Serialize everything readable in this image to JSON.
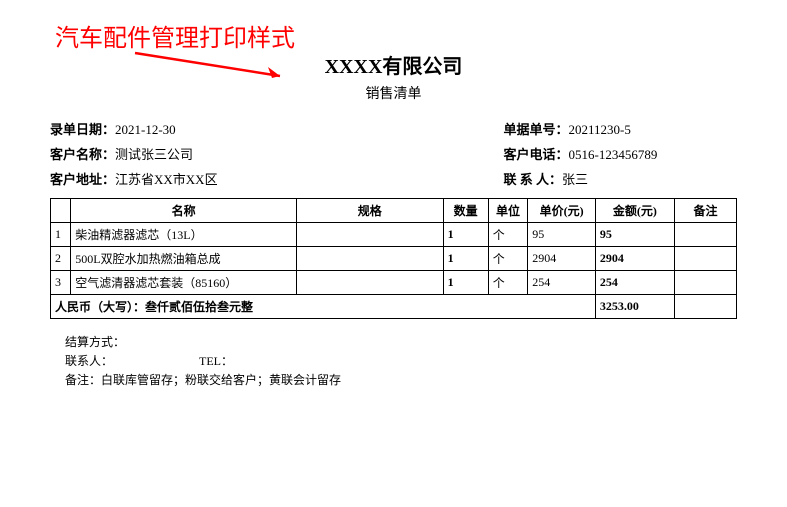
{
  "annotation": {
    "text": "汽车配件管理打印样式",
    "color": "#ff0000",
    "arrow_color": "#ff0000"
  },
  "header": {
    "company": "XXXX有限公司",
    "doc_type": "销售清单"
  },
  "info": {
    "entry_date_label": "录单日期：",
    "entry_date": "2021-12-30",
    "doc_no_label": "单据单号：",
    "doc_no": "20211230-5",
    "customer_name_label": "客户名称：",
    "customer_name": "测试张三公司",
    "customer_phone_label": "客户电话：",
    "customer_phone": "0516-123456789",
    "customer_addr_label": "客户地址：",
    "customer_addr": "江苏省XX市XX区",
    "contact_label": "联 系 人：",
    "contact": "张三"
  },
  "table": {
    "headers": {
      "name": "名称",
      "spec": "规格",
      "qty": "数量",
      "unit": "单位",
      "price": "单价(元)",
      "amount": "金额(元)",
      "note": "备注"
    },
    "rows": [
      {
        "idx": "1",
        "name": "柴油精滤器滤芯（13L）",
        "spec": "",
        "qty": "1",
        "unit": "个",
        "price": "95",
        "amount": "95",
        "note": ""
      },
      {
        "idx": "2",
        "name": "500L双腔水加热燃油箱总成",
        "spec": "",
        "qty": "1",
        "unit": "个",
        "price": "2904",
        "amount": "2904",
        "note": ""
      },
      {
        "idx": "3",
        "name": "空气滤清器滤芯套装（85160）",
        "spec": "",
        "qty": "1",
        "unit": "个",
        "price": "254",
        "amount": "254",
        "note": ""
      }
    ],
    "total": {
      "label": "人民币（大写）：叁仟贰佰伍拾叁元整",
      "amount": "3253.00"
    }
  },
  "footer": {
    "settle_label": "结算方式：",
    "contact_label": "联系人：",
    "tel_label": "TEL：",
    "remark_label": "备注：",
    "remark": "白联库管留存；粉联交给客户；黄联会计留存"
  },
  "style": {
    "border_color": "#000000",
    "bg_color": "#ffffff"
  }
}
